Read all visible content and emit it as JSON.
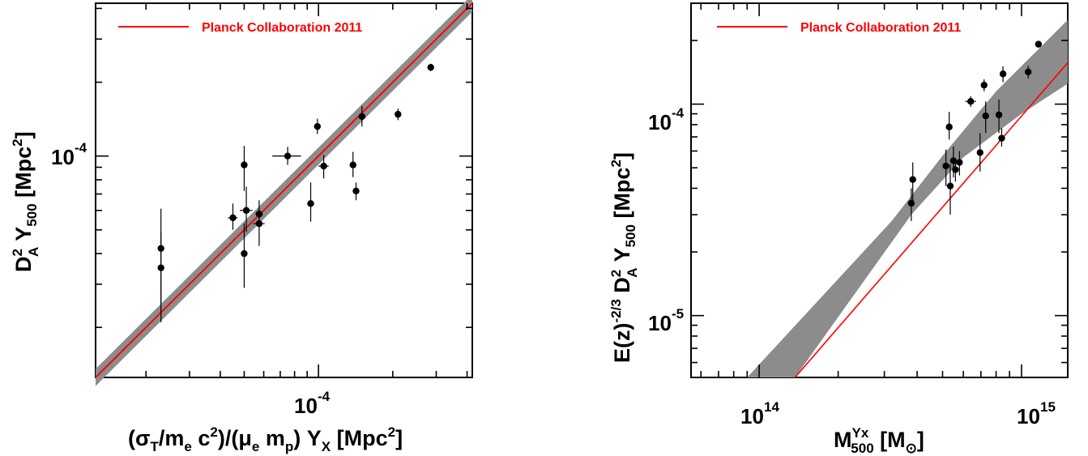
{
  "chart_data": [
    {
      "type": "scatter",
      "xscale": "log",
      "yscale": "log",
      "xlim": [
        1.25e-05,
        0.00042
      ],
      "ylim": [
        1.25e-05,
        0.00042
      ],
      "xlabel": "(σT/me c2)/(μe mp) YX [Mpc2]",
      "ylabel": "D2A Y500 [Mpc2]",
      "x_tick_label": "10-4",
      "y_tick_label": "10-4",
      "legend": {
        "label": "Planck Collaboration 2011",
        "position": "top-left",
        "color": "#ff0000"
      },
      "colors": {
        "band": "#8c8c8c",
        "line": "#ff0000",
        "points": "#000000"
      },
      "fit_line": {
        "x": [
          1.25e-05,
          0.00042
        ],
        "y": [
          1.25e-05,
          0.00042
        ]
      },
      "band_halfwidth_dex": 0.035,
      "points": [
        {
          "x": 2.3e-05,
          "y": 4.2e-05,
          "yerr": [
            1.7e-05,
            1.9e-05
          ],
          "xerr": [
            4e-07,
            4e-07
          ]
        },
        {
          "x": 2.3e-05,
          "y": 3.5e-05,
          "yerr": [
            1.4e-05,
            1.4e-05
          ],
          "xerr": [
            4e-07,
            4e-07
          ]
        },
        {
          "x": 4.5e-05,
          "y": 5.6e-05,
          "yerr": [
            6e-06,
            8e-06
          ],
          "xerr": [
            2e-06,
            2e-06
          ]
        },
        {
          "x": 5e-05,
          "y": 9.2e-05,
          "yerr": [
            2e-05,
            1.8e-05
          ],
          "xerr": [
            1e-06,
            1e-06
          ]
        },
        {
          "x": 5.1e-05,
          "y": 6e-05,
          "yerr": [
            1.1e-05,
            1.5e-05
          ],
          "xerr": [
            3e-06,
            3e-06
          ]
        },
        {
          "x": 5e-05,
          "y": 4e-05,
          "yerr": [
            1.1e-05,
            1.3e-05
          ],
          "xerr": [
            1e-06,
            1e-06
          ]
        },
        {
          "x": 5.75e-05,
          "y": 5.3e-05,
          "yerr": [
            1e-05,
            8e-06
          ],
          "xerr": [
            3e-06,
            3e-06
          ]
        },
        {
          "x": 5.75e-05,
          "y": 5.8e-05,
          "yerr": [
            6e-06,
            8e-06
          ],
          "xerr": [
            2e-06,
            2e-06
          ]
        },
        {
          "x": 7.5e-05,
          "y": 0.0001,
          "yerr": [
            8e-06,
            9e-06
          ],
          "xerr": [
            1e-05,
            1e-05
          ]
        },
        {
          "x": 9.3e-05,
          "y": 6.4e-05,
          "yerr": [
            1e-05,
            1.4e-05
          ],
          "xerr": [
            3e-06,
            3e-06
          ]
        },
        {
          "x": 9.9e-05,
          "y": 0.000132,
          "yerr": [
            9e-06,
            1e-05
          ],
          "xerr": [
            2e-06,
            2e-06
          ]
        },
        {
          "x": 0.000105,
          "y": 9.1e-05,
          "yerr": [
            1e-05,
            1e-05
          ],
          "xerr": [
            5e-06,
            5e-06
          ]
        },
        {
          "x": 0.000138,
          "y": 9.2e-05,
          "yerr": [
            1e-05,
            1.2e-05
          ],
          "xerr": [
            4e-06,
            4e-06
          ]
        },
        {
          "x": 0.000142,
          "y": 7.2e-05,
          "yerr": [
            6e-06,
            6e-06
          ],
          "xerr": [
            3e-06,
            3e-06
          ]
        },
        {
          "x": 0.00015,
          "y": 0.000145,
          "yerr": [
            1.3e-05,
            1.5e-05
          ],
          "xerr": [
            5e-06,
            5e-06
          ]
        },
        {
          "x": 0.00021,
          "y": 0.000148,
          "yerr": [
            8e-06,
            8e-06
          ],
          "xerr": [
            5e-06,
            5e-06
          ]
        },
        {
          "x": 0.000285,
          "y": 0.00023,
          "yerr": [
            8e-06,
            8e-06
          ],
          "xerr": [
            5e-06,
            5e-06
          ]
        }
      ]
    },
    {
      "type": "scatter",
      "xscale": "log",
      "yscale": "log",
      "xlim": [
        55000000000000.0,
        1500000000000000.0
      ],
      "ylim": [
        5.1e-06,
        0.0003
      ],
      "xlabel": "MYx500 [M☉]",
      "ylabel": "E(z)-2/3 D2A Y500 [Mpc2]",
      "x_tick_labels": [
        "1014",
        "1015"
      ],
      "y_tick_labels": [
        "10-4",
        "10-5"
      ],
      "legend": {
        "label": "Planck Collaboration 2011",
        "position": "top-left",
        "color": "#ff0000"
      },
      "colors": {
        "band": "#8c8c8c",
        "line": "#ff0000",
        "points": "#000000"
      },
      "fit_line": {
        "x": [
          137000000000000.0,
          1500000000000000.0
        ],
        "y": [
          5.1e-06,
          0.000157
        ]
      },
      "band_upper": {
        "x": [
          90000000000000.0,
          320000000000000.0,
          500000000000000.0,
          800000000000000.0,
          1500000000000000.0
        ],
        "y": [
          5.1e-06,
          2.8e-05,
          5.7e-05,
          0.000115,
          0.00025
        ]
      },
      "band_lower": {
        "x": [
          137000000000000.0,
          380000000000000.0,
          600000000000000.0,
          1000000000000000.0,
          1500000000000000.0
        ],
        "y": [
          5.1e-06,
          3e-05,
          5.6e-05,
          9e-05,
          0.000125
        ]
      },
      "points": [
        {
          "x": 380000000000000.0,
          "y": 3.4e-05,
          "yerr": [
            6e-06,
            6e-06
          ]
        },
        {
          "x": 385000000000000.0,
          "y": 4.4e-05,
          "yerr": [
            1e-05,
            9e-06
          ]
        },
        {
          "x": 515000000000000.0,
          "y": 5.1e-05,
          "yerr": [
            1e-05,
            1e-05
          ]
        },
        {
          "x": 530000000000000.0,
          "y": 7.8e-05,
          "yerr": [
            1e-05,
            1.4e-05
          ]
        },
        {
          "x": 535000000000000.0,
          "y": 4.1e-05,
          "yerr": [
            1.1e-05,
            1.1e-05
          ]
        },
        {
          "x": 550000000000000.0,
          "y": 5.4e-05,
          "yerr": [
            9e-06,
            9e-06
          ]
        },
        {
          "x": 560000000000000.0,
          "y": 4.9e-05,
          "yerr": [
            6e-06,
            6e-06
          ]
        },
        {
          "x": 580000000000000.0,
          "y": 5.3e-05,
          "yerr": [
            7e-06,
            7e-06
          ]
        },
        {
          "x": 640000000000000.0,
          "y": 0.000103,
          "yerr": [
            6e-06,
            6e-06
          ],
          "xerr": [
            30000000000000.0,
            30000000000000.0
          ]
        },
        {
          "x": 695000000000000.0,
          "y": 5.9e-05,
          "yerr": [
            1.1e-05,
            1.4e-05
          ]
        },
        {
          "x": 720000000000000.0,
          "y": 0.000123,
          "yerr": [
            8e-06,
            8e-06
          ]
        },
        {
          "x": 730000000000000.0,
          "y": 8.8e-05,
          "yerr": [
            1.5e-05,
            1.5e-05
          ]
        },
        {
          "x": 820000000000000.0,
          "y": 8.9e-05,
          "yerr": [
            1.6e-05,
            1.6e-05
          ]
        },
        {
          "x": 840000000000000.0,
          "y": 6.9e-05,
          "yerr": [
            6e-06,
            8e-06
          ]
        },
        {
          "x": 850000000000000.0,
          "y": 0.000139,
          "yerr": [
            1.2e-05,
            1.2e-05
          ]
        },
        {
          "x": 1060000000000000.0,
          "y": 0.000142,
          "yerr": [
            1e-05,
            1e-05
          ]
        },
        {
          "x": 1160000000000000.0,
          "y": 0.000192,
          "yerr": [
            6e-06,
            6e-06
          ]
        }
      ]
    }
  ]
}
